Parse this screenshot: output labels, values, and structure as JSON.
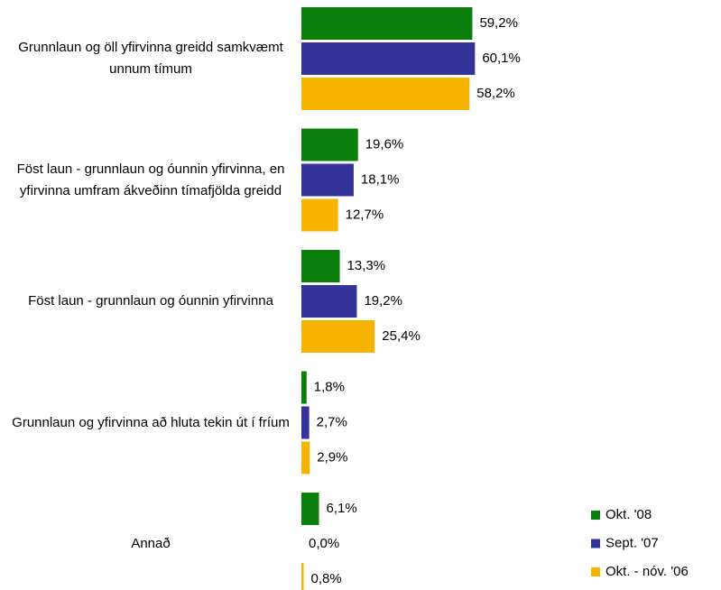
{
  "chart_data": {
    "type": "bar",
    "orientation": "horizontal",
    "categories": [
      "Grunnlaun og öll yfirvinna greidd samkvæmt unnum tímum",
      "Föst laun - grunnlaun og óunnin yfirvinna, en yfirvinna umfram ákveðinn tímafjölda greidd",
      "Föst laun - grunnlaun og óunnin yfirvinna",
      "Grunnlaun og yfirvinna að hluta tekin út í fríum",
      "Annað"
    ],
    "series": [
      {
        "name": "Okt. '08",
        "color": "#0b7f0b",
        "values": [
          59.2,
          19.6,
          13.3,
          1.8,
          6.1
        ],
        "value_labels": [
          "59,2%",
          "19,6%",
          "13,3%",
          "1,8%",
          "6,1%"
        ]
      },
      {
        "name": "Sept. '07",
        "color": "#333399",
        "values": [
          60.1,
          18.1,
          19.2,
          2.7,
          0.0
        ],
        "value_labels": [
          "60,1%",
          "18,1%",
          "19,2%",
          "2,7%",
          "0,0%"
        ]
      },
      {
        "name": "Okt. - nóv. '06",
        "color": "#f6b400",
        "values": [
          58.2,
          12.7,
          25.4,
          2.9,
          0.8
        ],
        "value_labels": [
          "58,2%",
          "12,7%",
          "25,4%",
          "2,9%",
          "0,8%"
        ]
      }
    ],
    "legend": "bottom-right"
  }
}
